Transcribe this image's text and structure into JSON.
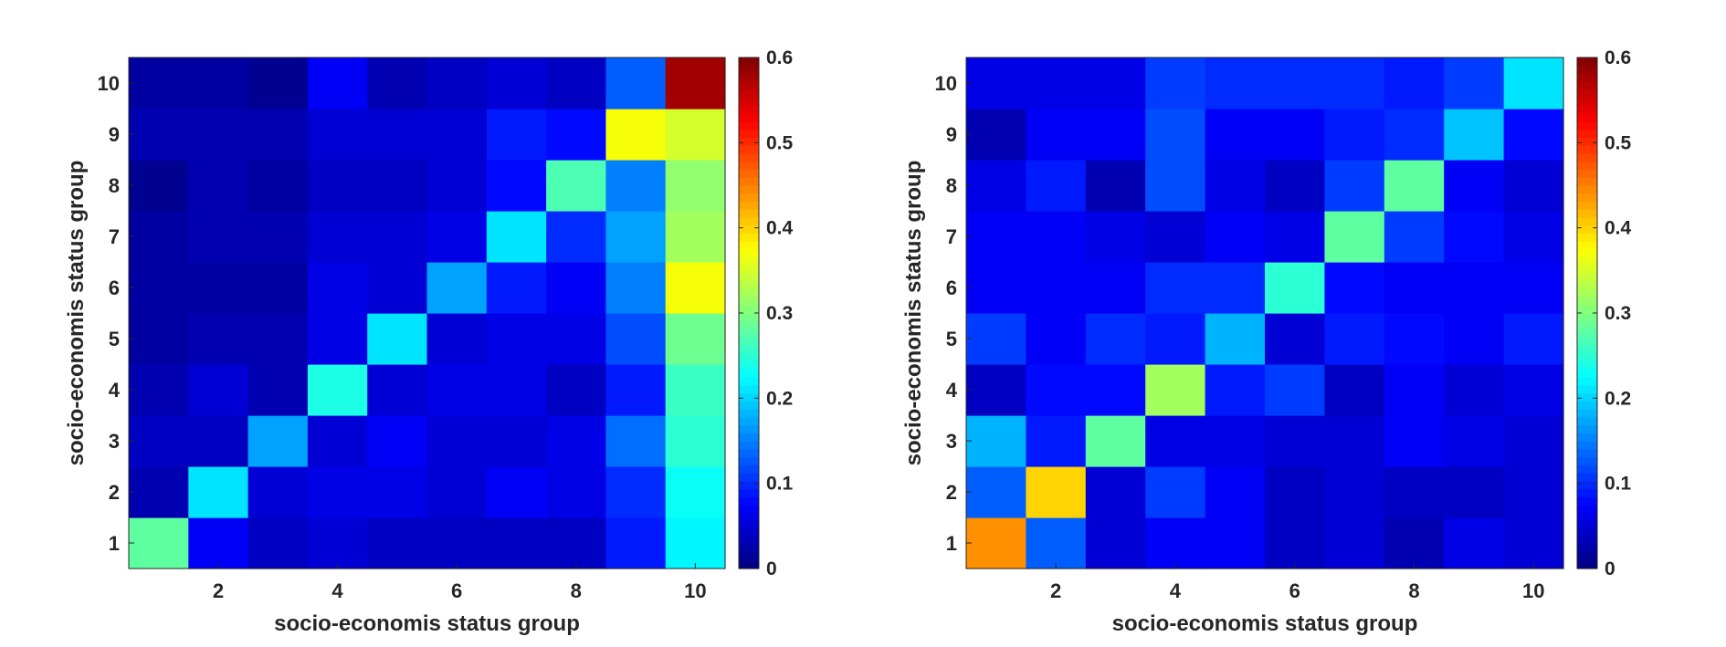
{
  "chart_data": [
    {
      "type": "heatmap",
      "title": "",
      "xlabel": "socio-economis status group",
      "ylabel": "socio-economis status group",
      "x": [
        1,
        2,
        3,
        4,
        5,
        6,
        7,
        8,
        9,
        10
      ],
      "y": [
        1,
        2,
        3,
        4,
        5,
        6,
        7,
        8,
        9,
        10
      ],
      "xticks": [
        2,
        4,
        6,
        8,
        10
      ],
      "yticks": [
        1,
        2,
        3,
        4,
        5,
        6,
        7,
        8,
        9,
        10
      ],
      "clim": [
        0,
        0.6
      ],
      "colormap": "jet",
      "colorbar_ticks": [
        0,
        0.1,
        0.2,
        0.3,
        0.4,
        0.5,
        0.6
      ],
      "values": [
        [
          0.28,
          0.07,
          0.04,
          0.05,
          0.04,
          0.04,
          0.04,
          0.04,
          0.09,
          0.22
        ],
        [
          0.03,
          0.21,
          0.05,
          0.06,
          0.06,
          0.05,
          0.07,
          0.06,
          0.1,
          0.23
        ],
        [
          0.04,
          0.04,
          0.17,
          0.05,
          0.07,
          0.05,
          0.05,
          0.06,
          0.14,
          0.25
        ],
        [
          0.03,
          0.05,
          0.03,
          0.24,
          0.05,
          0.06,
          0.06,
          0.04,
          0.09,
          0.26
        ],
        [
          0.02,
          0.03,
          0.03,
          0.06,
          0.21,
          0.05,
          0.06,
          0.06,
          0.12,
          0.29
        ],
        [
          0.02,
          0.02,
          0.02,
          0.06,
          0.05,
          0.17,
          0.09,
          0.07,
          0.15,
          0.37
        ],
        [
          0.02,
          0.03,
          0.03,
          0.05,
          0.05,
          0.06,
          0.21,
          0.1,
          0.17,
          0.32
        ],
        [
          0.01,
          0.03,
          0.02,
          0.04,
          0.04,
          0.05,
          0.08,
          0.27,
          0.15,
          0.31
        ],
        [
          0.03,
          0.03,
          0.03,
          0.05,
          0.05,
          0.05,
          0.09,
          0.08,
          0.37,
          0.35
        ],
        [
          0.02,
          0.02,
          0.01,
          0.07,
          0.03,
          0.04,
          0.05,
          0.04,
          0.13,
          0.58
        ]
      ]
    },
    {
      "type": "heatmap",
      "title": "",
      "xlabel": "socio-economis status group",
      "ylabel": "socio-economis status group",
      "x": [
        1,
        2,
        3,
        4,
        5,
        6,
        7,
        8,
        9,
        10
      ],
      "y": [
        1,
        2,
        3,
        4,
        5,
        6,
        7,
        8,
        9,
        10
      ],
      "xticks": [
        2,
        4,
        6,
        8,
        10
      ],
      "yticks": [
        1,
        2,
        3,
        4,
        5,
        6,
        7,
        8,
        9,
        10
      ],
      "clim": [
        0,
        0.6
      ],
      "colormap": "jet",
      "colorbar_ticks": [
        0,
        0.1,
        0.2,
        0.3,
        0.4,
        0.5,
        0.6
      ],
      "values": [
        [
          0.44,
          0.13,
          0.05,
          0.07,
          0.07,
          0.04,
          0.05,
          0.03,
          0.06,
          0.05
        ],
        [
          0.13,
          0.4,
          0.05,
          0.11,
          0.07,
          0.04,
          0.05,
          0.04,
          0.04,
          0.05
        ],
        [
          0.18,
          0.09,
          0.28,
          0.06,
          0.06,
          0.05,
          0.05,
          0.07,
          0.06,
          0.05
        ],
        [
          0.04,
          0.08,
          0.08,
          0.32,
          0.09,
          0.11,
          0.04,
          0.07,
          0.05,
          0.06
        ],
        [
          0.11,
          0.07,
          0.1,
          0.09,
          0.18,
          0.05,
          0.09,
          0.08,
          0.07,
          0.09
        ],
        [
          0.07,
          0.07,
          0.07,
          0.1,
          0.1,
          0.25,
          0.08,
          0.07,
          0.07,
          0.07
        ],
        [
          0.07,
          0.07,
          0.06,
          0.05,
          0.07,
          0.06,
          0.28,
          0.11,
          0.08,
          0.06
        ],
        [
          0.06,
          0.09,
          0.03,
          0.12,
          0.06,
          0.04,
          0.11,
          0.28,
          0.07,
          0.05
        ],
        [
          0.03,
          0.07,
          0.07,
          0.12,
          0.07,
          0.07,
          0.09,
          0.1,
          0.19,
          0.08
        ],
        [
          0.06,
          0.06,
          0.06,
          0.11,
          0.1,
          0.1,
          0.1,
          0.09,
          0.11,
          0.21
        ]
      ]
    }
  ]
}
